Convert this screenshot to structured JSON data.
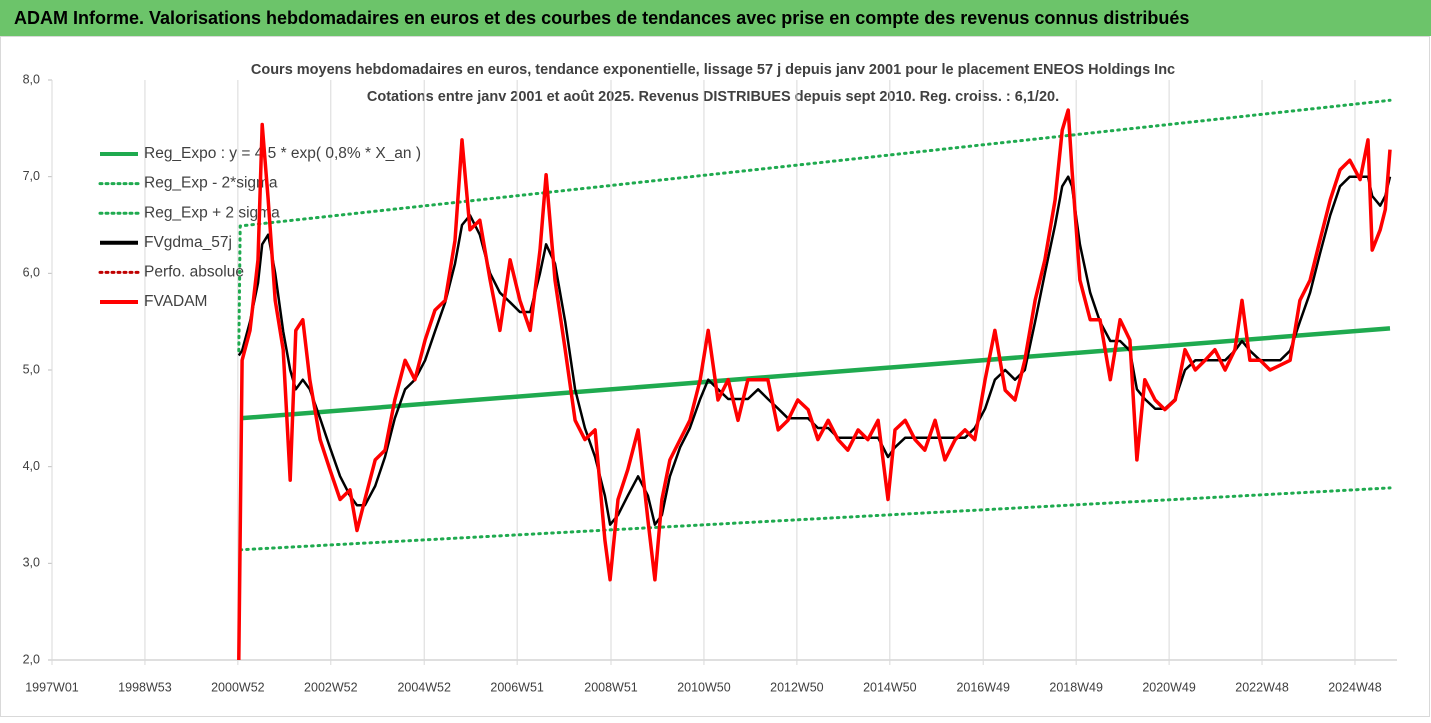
{
  "header": {
    "title": "ADAM Informe. Valorisations hebdomadaires en euros et des courbes de tendances avec prise en compte des revenus connus distribués"
  },
  "chart_data": {
    "type": "line",
    "title": "Cours moyens hebdomadaires en euros, tendance exponentielle, lissage 57 j depuis janv 2001 pour le placement ENEOS Holdings Inc",
    "subtitle": "Cotations entre janv 2001 et août 2025. Revenus DISTRIBUES depuis sept 2010. Reg. croiss. : 6,1/20.",
    "xlim": [
      1997.0,
      2025.8
    ],
    "ylim": [
      2,
      8
    ],
    "xticks": [
      {
        "value": 1997.0,
        "label": "1997W01"
      },
      {
        "value": 1998.99,
        "label": "1998W53"
      },
      {
        "value": 2000.98,
        "label": "2000W52"
      },
      {
        "value": 2002.97,
        "label": "2002W52"
      },
      {
        "value": 2004.97,
        "label": "2004W52"
      },
      {
        "value": 2006.96,
        "label": "2006W51"
      },
      {
        "value": 2008.97,
        "label": "2008W51"
      },
      {
        "value": 2010.96,
        "label": "2010W50"
      },
      {
        "value": 2012.95,
        "label": "2012W50"
      },
      {
        "value": 2014.94,
        "label": "2014W50"
      },
      {
        "value": 2016.94,
        "label": "2016W49"
      },
      {
        "value": 2018.93,
        "label": "2018W49"
      },
      {
        "value": 2020.92,
        "label": "2020W49"
      },
      {
        "value": 2022.91,
        "label": "2022W48"
      },
      {
        "value": 2024.9,
        "label": "2024W48"
      }
    ],
    "yticks": [
      {
        "value": 2,
        "label": "2,0"
      },
      {
        "value": 3,
        "label": "3,0"
      },
      {
        "value": 4,
        "label": "4,0"
      },
      {
        "value": 5,
        "label": "5,0"
      },
      {
        "value": 6,
        "label": "6,0"
      },
      {
        "value": 7,
        "label": "7,0"
      },
      {
        "value": 8,
        "label": "8,0"
      }
    ],
    "grid": true,
    "legend": "top-left",
    "x": [
      2001.0,
      2001.07,
      2001.24,
      2001.41,
      2001.5,
      2001.63,
      2001.78,
      2001.95,
      2002.1,
      2002.22,
      2002.37,
      2002.52,
      2002.74,
      2002.95,
      2003.17,
      2003.38,
      2003.53,
      2003.7,
      2003.92,
      2004.13,
      2004.34,
      2004.56,
      2004.77,
      2004.99,
      2005.2,
      2005.42,
      2005.63,
      2005.78,
      2005.95,
      2006.16,
      2006.38,
      2006.59,
      2006.81,
      2007.02,
      2007.24,
      2007.45,
      2007.58,
      2007.77,
      2007.99,
      2008.2,
      2008.41,
      2008.63,
      2008.84,
      2008.95,
      2009.12,
      2009.33,
      2009.55,
      2009.76,
      2009.91,
      2010.06,
      2010.23,
      2010.45,
      2010.66,
      2010.88,
      2011.05,
      2011.26,
      2011.48,
      2011.69,
      2011.9,
      2012.12,
      2012.33,
      2012.55,
      2012.76,
      2012.97,
      2013.19,
      2013.4,
      2013.62,
      2013.83,
      2014.04,
      2014.26,
      2014.47,
      2014.69,
      2014.9,
      2015.05,
      2015.27,
      2015.48,
      2015.69,
      2015.91,
      2016.12,
      2016.34,
      2016.55,
      2016.76,
      2016.98,
      2017.19,
      2017.41,
      2017.62,
      2017.83,
      2018.05,
      2018.26,
      2018.48,
      2018.63,
      2018.76,
      2018.84,
      2019.01,
      2019.23,
      2019.44,
      2019.66,
      2019.87,
      2020.08,
      2020.23,
      2020.4,
      2020.62,
      2020.83,
      2021.05,
      2021.26,
      2021.48,
      2021.69,
      2021.9,
      2022.12,
      2022.33,
      2022.48,
      2022.65,
      2022.87,
      2023.08,
      2023.3,
      2023.51,
      2023.72,
      2023.94,
      2024.15,
      2024.37,
      2024.58,
      2024.79,
      2025.01,
      2025.18,
      2025.27,
      2025.44,
      2025.55,
      2025.65
    ],
    "series": [
      {
        "name": "Reg_Expo : y = 4,5 * exp( 0,8% *  X_an )",
        "color": "#1faa4f",
        "dotted": false,
        "width": 4.5,
        "x": [
          2001.03,
          2025.65
        ],
        "values": [
          4.5,
          5.43
        ]
      },
      {
        "name": "Reg_Exp - 2*sigma",
        "color": "#1faa4f",
        "dotted": true,
        "width": 3,
        "x": [
          2001.03,
          2025.65
        ],
        "values": [
          3.14,
          3.78
        ]
      },
      {
        "name": "Reg_Exp + 2 sigma",
        "color": "#1faa4f",
        "dotted": true,
        "width": 3,
        "x": [
          2001.0,
          2001.03,
          2025.65
        ],
        "values": [
          5.2,
          6.49,
          7.79
        ]
      },
      {
        "name": "FVgdma_57j",
        "color": "#000000",
        "dotted": false,
        "width": 2.5,
        "values": [
          5.15,
          5.2,
          5.5,
          5.9,
          6.3,
          6.4,
          6.0,
          5.4,
          5.0,
          4.8,
          4.9,
          4.8,
          4.5,
          4.2,
          3.9,
          3.7,
          3.6,
          3.6,
          3.8,
          4.1,
          4.5,
          4.8,
          4.9,
          5.1,
          5.4,
          5.7,
          6.1,
          6.5,
          6.6,
          6.4,
          6.0,
          5.8,
          5.7,
          5.6,
          5.6,
          6.0,
          6.3,
          6.1,
          5.5,
          4.8,
          4.4,
          4.1,
          3.7,
          3.4,
          3.5,
          3.7,
          3.9,
          3.7,
          3.4,
          3.5,
          3.9,
          4.2,
          4.4,
          4.7,
          4.9,
          4.8,
          4.7,
          4.7,
          4.7,
          4.8,
          4.7,
          4.6,
          4.5,
          4.5,
          4.5,
          4.4,
          4.4,
          4.3,
          4.3,
          4.3,
          4.3,
          4.3,
          4.1,
          4.2,
          4.3,
          4.3,
          4.3,
          4.3,
          4.3,
          4.3,
          4.3,
          4.4,
          4.6,
          4.9,
          5.0,
          4.9,
          5.0,
          5.5,
          6.0,
          6.5,
          6.9,
          7.0,
          6.9,
          6.3,
          5.8,
          5.5,
          5.3,
          5.3,
          5.2,
          4.8,
          4.7,
          4.6,
          4.6,
          4.7,
          5.0,
          5.1,
          5.1,
          5.1,
          5.1,
          5.2,
          5.3,
          5.2,
          5.1,
          5.1,
          5.1,
          5.2,
          5.5,
          5.8,
          6.2,
          6.6,
          6.9,
          7.0,
          7.0,
          7.0,
          6.8,
          6.7,
          6.8,
          7.0
        ]
      },
      {
        "name": "Perfo. absolue",
        "color": "#c00000",
        "dotted": true,
        "width": 3,
        "x": [],
        "values": []
      },
      {
        "name": "FVADAM",
        "color": "#ff0000",
        "dotted": false,
        "width": 3.5,
        "values": [
          2.0,
          5.1,
          5.41,
          6.14,
          7.54,
          6.76,
          5.72,
          5.21,
          3.86,
          5.41,
          5.52,
          4.9,
          4.28,
          3.97,
          3.66,
          3.76,
          3.34,
          3.66,
          4.07,
          4.17,
          4.69,
          5.1,
          4.9,
          5.31,
          5.62,
          5.72,
          6.34,
          7.38,
          6.45,
          6.55,
          5.93,
          5.41,
          6.14,
          5.72,
          5.41,
          6.24,
          7.02,
          5.93,
          5.21,
          4.48,
          4.28,
          4.38,
          3.24,
          2.83,
          3.66,
          3.97,
          4.38,
          3.45,
          2.83,
          3.66,
          4.07,
          4.28,
          4.48,
          4.9,
          5.41,
          4.69,
          4.9,
          4.48,
          4.9,
          4.9,
          4.9,
          4.38,
          4.48,
          4.69,
          4.59,
          4.28,
          4.48,
          4.28,
          4.17,
          4.38,
          4.28,
          4.48,
          3.66,
          4.38,
          4.48,
          4.28,
          4.17,
          4.48,
          4.07,
          4.28,
          4.38,
          4.28,
          4.9,
          5.41,
          4.79,
          4.69,
          5.1,
          5.72,
          6.14,
          6.76,
          7.48,
          7.69,
          7.07,
          5.93,
          5.52,
          5.52,
          4.9,
          5.52,
          5.31,
          4.07,
          4.9,
          4.69,
          4.59,
          4.69,
          5.21,
          5.0,
          5.1,
          5.21,
          5.0,
          5.21,
          5.72,
          5.1,
          5.1,
          5.0,
          5.05,
          5.1,
          5.72,
          5.93,
          6.34,
          6.76,
          7.07,
          7.17,
          6.97,
          7.38,
          6.24,
          6.45,
          6.66,
          7.28
        ]
      }
    ]
  }
}
